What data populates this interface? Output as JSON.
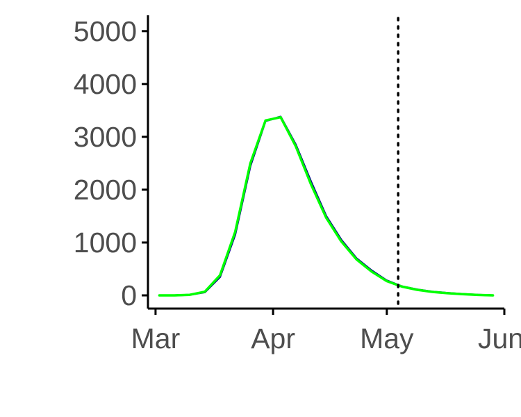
{
  "chart_data": {
    "type": "line",
    "title": "",
    "xlabel": "",
    "ylabel": "",
    "x_axis": {
      "type": "date",
      "range": [
        "2020-02-28",
        "2020-06-01"
      ],
      "ticks": [
        {
          "date": "2020-03-01",
          "label": "Mar"
        },
        {
          "date": "2020-04-01",
          "label": "Apr"
        },
        {
          "date": "2020-05-01",
          "label": "May"
        },
        {
          "date": "2020-06-01",
          "label": "Jun"
        }
      ]
    },
    "y_axis": {
      "range": [
        -250,
        5300
      ],
      "ticks": [
        0,
        1000,
        2000,
        3000,
        4000,
        5000
      ]
    },
    "grid": false,
    "legend": "none",
    "vline": {
      "date": "2020-05-04",
      "style": "dotted",
      "color": "#000000"
    },
    "series": [
      {
        "color": "#00008b",
        "points": [
          [
            "2020-03-02",
            0
          ],
          [
            "2020-03-06",
            0
          ],
          [
            "2020-03-10",
            10
          ],
          [
            "2020-03-14",
            60
          ],
          [
            "2020-03-18",
            350
          ],
          [
            "2020-03-22",
            1150
          ],
          [
            "2020-03-26",
            2450
          ],
          [
            "2020-03-30",
            3300
          ],
          [
            "2020-04-03",
            3380
          ],
          [
            "2020-04-07",
            2850
          ],
          [
            "2020-04-11",
            2150
          ],
          [
            "2020-04-15",
            1500
          ],
          [
            "2020-04-19",
            1050
          ],
          [
            "2020-04-23",
            700
          ],
          [
            "2020-04-27",
            470
          ],
          [
            "2020-05-01",
            280
          ],
          [
            "2020-05-05",
            170
          ],
          [
            "2020-05-09",
            110
          ],
          [
            "2020-05-13",
            70
          ],
          [
            "2020-05-17",
            45
          ],
          [
            "2020-05-21",
            25
          ],
          [
            "2020-05-25",
            10
          ],
          [
            "2020-05-29",
            0
          ]
        ]
      },
      {
        "color": "#00ff00",
        "points": [
          [
            "2020-03-02",
            0
          ],
          [
            "2020-03-06",
            0
          ],
          [
            "2020-03-10",
            10
          ],
          [
            "2020-03-14",
            70
          ],
          [
            "2020-03-18",
            380
          ],
          [
            "2020-03-22",
            1200
          ],
          [
            "2020-03-26",
            2500
          ],
          [
            "2020-03-30",
            3310
          ],
          [
            "2020-04-03",
            3370
          ],
          [
            "2020-04-07",
            2820
          ],
          [
            "2020-04-11",
            2100
          ],
          [
            "2020-04-15",
            1470
          ],
          [
            "2020-04-19",
            1020
          ],
          [
            "2020-04-23",
            680
          ],
          [
            "2020-04-27",
            450
          ],
          [
            "2020-05-01",
            270
          ],
          [
            "2020-05-05",
            165
          ],
          [
            "2020-05-09",
            105
          ],
          [
            "2020-05-13",
            65
          ],
          [
            "2020-05-17",
            40
          ],
          [
            "2020-05-21",
            22
          ],
          [
            "2020-05-25",
            8
          ],
          [
            "2020-05-29",
            0
          ]
        ]
      }
    ]
  }
}
